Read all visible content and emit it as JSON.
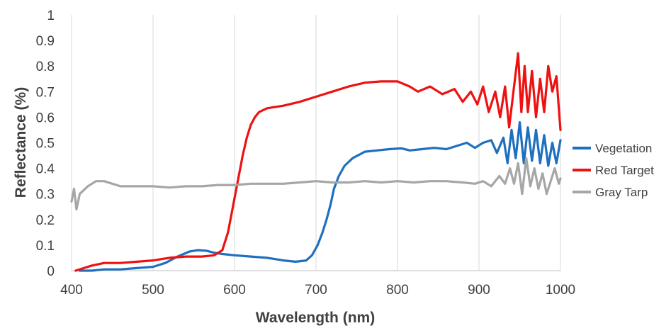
{
  "chart_data": {
    "type": "line",
    "title": "",
    "xlabel": "Wavelength (nm)",
    "ylabel": "Reflectance (%)",
    "xlim": [
      400,
      1000
    ],
    "ylim": [
      0,
      1
    ],
    "xticks": [
      "400",
      "500",
      "600",
      "700",
      "800",
      "900",
      "1000"
    ],
    "yticks": [
      "0",
      "0.1",
      "0.2",
      "0.3",
      "0.4",
      "0.5",
      "0.6",
      "0.7",
      "0.8",
      "0.9",
      "1"
    ],
    "grid": "vertical",
    "legend_position": "right",
    "series": [
      {
        "name": "Vegetation",
        "color": "#1F6FBF",
        "points": [
          [
            410,
            0.0
          ],
          [
            425,
            0.0
          ],
          [
            440,
            0.005
          ],
          [
            460,
            0.005
          ],
          [
            480,
            0.01
          ],
          [
            500,
            0.015
          ],
          [
            515,
            0.03
          ],
          [
            530,
            0.055
          ],
          [
            545,
            0.075
          ],
          [
            555,
            0.08
          ],
          [
            565,
            0.078
          ],
          [
            575,
            0.07
          ],
          [
            585,
            0.065
          ],
          [
            600,
            0.06
          ],
          [
            620,
            0.055
          ],
          [
            640,
            0.05
          ],
          [
            660,
            0.04
          ],
          [
            675,
            0.035
          ],
          [
            688,
            0.04
          ],
          [
            695,
            0.06
          ],
          [
            702,
            0.1
          ],
          [
            708,
            0.15
          ],
          [
            713,
            0.2
          ],
          [
            718,
            0.26
          ],
          [
            722,
            0.32
          ],
          [
            728,
            0.37
          ],
          [
            735,
            0.41
          ],
          [
            745,
            0.44
          ],
          [
            760,
            0.465
          ],
          [
            775,
            0.47
          ],
          [
            790,
            0.475
          ],
          [
            805,
            0.478
          ],
          [
            815,
            0.47
          ],
          [
            830,
            0.475
          ],
          [
            845,
            0.48
          ],
          [
            860,
            0.475
          ],
          [
            875,
            0.49
          ],
          [
            885,
            0.5
          ],
          [
            895,
            0.48
          ],
          [
            905,
            0.5
          ],
          [
            915,
            0.51
          ],
          [
            922,
            0.46
          ],
          [
            930,
            0.52
          ],
          [
            935,
            0.42
          ],
          [
            940,
            0.55
          ],
          [
            945,
            0.44
          ],
          [
            950,
            0.58
          ],
          [
            955,
            0.42
          ],
          [
            960,
            0.56
          ],
          [
            965,
            0.43
          ],
          [
            970,
            0.55
          ],
          [
            975,
            0.42
          ],
          [
            980,
            0.53
          ],
          [
            985,
            0.41
          ],
          [
            990,
            0.5
          ],
          [
            995,
            0.42
          ],
          [
            1000,
            0.51
          ]
        ]
      },
      {
        "name": "Red Target",
        "color": "#EE1111",
        "points": [
          [
            405,
            0.0
          ],
          [
            415,
            0.01
          ],
          [
            425,
            0.02
          ],
          [
            440,
            0.03
          ],
          [
            460,
            0.03
          ],
          [
            480,
            0.035
          ],
          [
            500,
            0.04
          ],
          [
            520,
            0.05
          ],
          [
            540,
            0.055
          ],
          [
            560,
            0.055
          ],
          [
            575,
            0.06
          ],
          [
            585,
            0.08
          ],
          [
            592,
            0.15
          ],
          [
            598,
            0.25
          ],
          [
            604,
            0.35
          ],
          [
            610,
            0.45
          ],
          [
            615,
            0.52
          ],
          [
            620,
            0.57
          ],
          [
            625,
            0.6
          ],
          [
            630,
            0.62
          ],
          [
            640,
            0.635
          ],
          [
            660,
            0.645
          ],
          [
            680,
            0.66
          ],
          [
            700,
            0.68
          ],
          [
            720,
            0.7
          ],
          [
            740,
            0.72
          ],
          [
            760,
            0.735
          ],
          [
            780,
            0.74
          ],
          [
            800,
            0.74
          ],
          [
            815,
            0.72
          ],
          [
            825,
            0.7
          ],
          [
            840,
            0.72
          ],
          [
            855,
            0.69
          ],
          [
            870,
            0.71
          ],
          [
            880,
            0.66
          ],
          [
            890,
            0.7
          ],
          [
            898,
            0.65
          ],
          [
            905,
            0.72
          ],
          [
            912,
            0.62
          ],
          [
            920,
            0.7
          ],
          [
            926,
            0.6
          ],
          [
            932,
            0.72
          ],
          [
            937,
            0.56
          ],
          [
            943,
            0.72
          ],
          [
            948,
            0.85
          ],
          [
            952,
            0.62
          ],
          [
            956,
            0.8
          ],
          [
            960,
            0.62
          ],
          [
            965,
            0.78
          ],
          [
            970,
            0.6
          ],
          [
            975,
            0.75
          ],
          [
            980,
            0.62
          ],
          [
            985,
            0.8
          ],
          [
            990,
            0.7
          ],
          [
            995,
            0.76
          ],
          [
            1000,
            0.55
          ]
        ]
      },
      {
        "name": "Gray Tarp",
        "color": "#A6A6A6",
        "points": [
          [
            400,
            0.27
          ],
          [
            403,
            0.32
          ],
          [
            406,
            0.24
          ],
          [
            410,
            0.3
          ],
          [
            420,
            0.33
          ],
          [
            430,
            0.35
          ],
          [
            440,
            0.35
          ],
          [
            450,
            0.34
          ],
          [
            460,
            0.33
          ],
          [
            480,
            0.33
          ],
          [
            500,
            0.33
          ],
          [
            520,
            0.325
          ],
          [
            540,
            0.33
          ],
          [
            560,
            0.33
          ],
          [
            580,
            0.335
          ],
          [
            600,
            0.335
          ],
          [
            620,
            0.34
          ],
          [
            640,
            0.34
          ],
          [
            660,
            0.34
          ],
          [
            680,
            0.345
          ],
          [
            700,
            0.35
          ],
          [
            720,
            0.345
          ],
          [
            740,
            0.345
          ],
          [
            760,
            0.35
          ],
          [
            780,
            0.345
          ],
          [
            800,
            0.35
          ],
          [
            820,
            0.345
          ],
          [
            840,
            0.35
          ],
          [
            860,
            0.35
          ],
          [
            880,
            0.345
          ],
          [
            895,
            0.34
          ],
          [
            905,
            0.35
          ],
          [
            915,
            0.33
          ],
          [
            925,
            0.37
          ],
          [
            932,
            0.34
          ],
          [
            938,
            0.4
          ],
          [
            943,
            0.34
          ],
          [
            948,
            0.42
          ],
          [
            953,
            0.3
          ],
          [
            958,
            0.44
          ],
          [
            963,
            0.33
          ],
          [
            968,
            0.4
          ],
          [
            973,
            0.32
          ],
          [
            978,
            0.38
          ],
          [
            983,
            0.3
          ],
          [
            988,
            0.35
          ],
          [
            993,
            0.4
          ],
          [
            998,
            0.34
          ],
          [
            1000,
            0.36
          ]
        ]
      }
    ]
  }
}
